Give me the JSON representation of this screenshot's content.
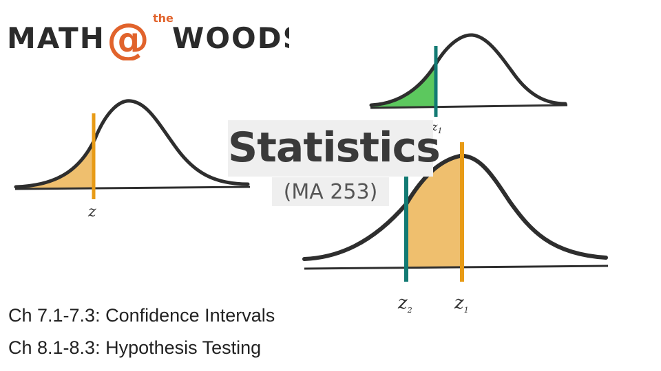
{
  "logo": {
    "word_left": "MATH",
    "at_symbol": "@",
    "superscript": "the",
    "word_right": "WOODS"
  },
  "title": "Statistics",
  "subtitle": "(MA 253)",
  "diagrams": {
    "left_curve": {
      "label": "z",
      "shaded_region": "left-tail",
      "fill_color": "#efbf6e",
      "line_color": "#e89b16"
    },
    "top_right_curve": {
      "label": "z",
      "label_subscript": "1",
      "shaded_region": "left-tail",
      "fill_color": "#5cc85e",
      "line_color": "#127a73"
    },
    "bottom_right_curve": {
      "label_left": "z",
      "label_left_subscript": "2",
      "label_right": "z",
      "label_right_subscript": "1",
      "shaded_region": "between",
      "fill_color": "#efbf6e",
      "left_line_color": "#127a73",
      "right_line_color": "#e89b16"
    }
  },
  "chapters": [
    "Ch 7.1-7.3: Confidence Intervals",
    "Ch 8.1-8.3: Hypothesis Testing"
  ],
  "colors": {
    "logo_dark": "#2b2b2b",
    "logo_accent": "#e1632c",
    "curve": "#2e2e2e"
  }
}
